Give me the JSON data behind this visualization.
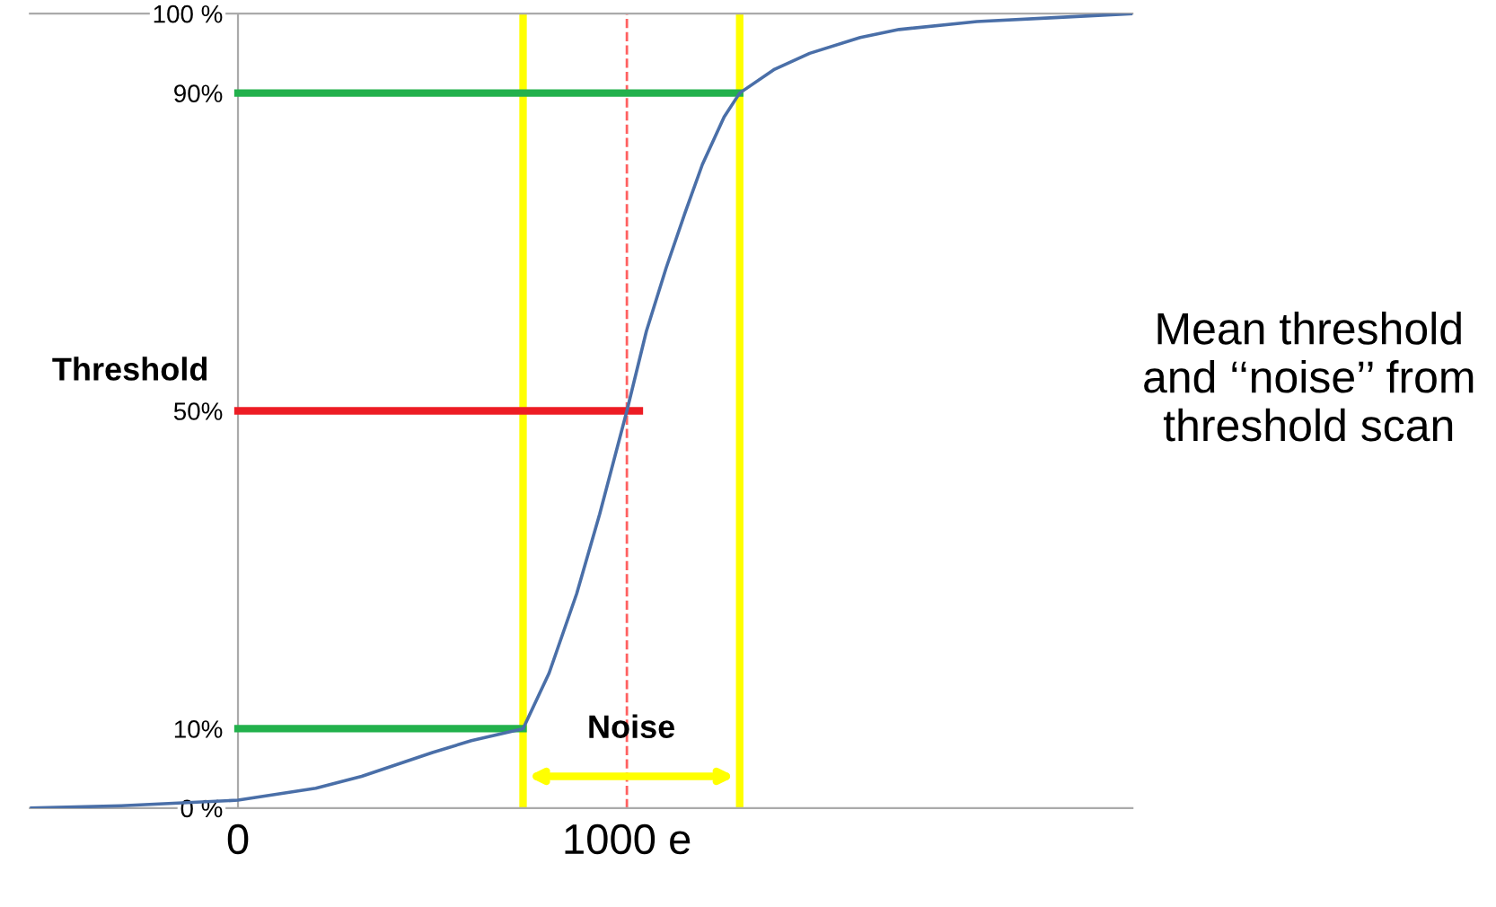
{
  "chart_data": {
    "type": "line",
    "annotations": [
      "Threshold",
      "Noise",
      "Mean threshold\nand ‘‘noise’’ from\nthreshold scan"
    ],
    "series": [
      {
        "color": "#4a6fa8",
        "x": [
          -535,
          -300,
          0,
          200,
          318,
          500,
          600,
          733,
          800,
          871,
          930,
          1000,
          1050,
          1101,
          1150,
          1194,
          1250,
          1290,
          1380,
          1470,
          1600,
          1700,
          1900,
          2100,
          2300
        ],
        "values": [
          0,
          0.3,
          1,
          2.5,
          4,
          7,
          8.5,
          10,
          17,
          27,
          37,
          50,
          60,
          68,
          75,
          81,
          87,
          90,
          93,
          95,
          97,
          98,
          99,
          99.5,
          100
        ]
      },
      {
        "color": "#22b14c",
        "x": [
          0,
          1290
        ],
        "values": [
          90,
          90
        ]
      },
      {
        "color": "#ed1c24",
        "x": [
          0,
          1032
        ],
        "values": [
          50,
          50
        ]
      },
      {
        "color": "#22b14c",
        "x": [
          0,
          733
        ],
        "values": [
          10,
          10
        ]
      }
    ],
    "ref_lines": [
      {
        "axis": "x",
        "value": 733,
        "color": "#ffff00"
      },
      {
        "axis": "x",
        "value": 1290,
        "color": "#ffff00"
      },
      {
        "axis": "x",
        "value": 1000,
        "color": "#ff6060",
        "line_style": "dashed"
      }
    ],
    "xlim": [
      -535,
      2300
    ],
    "ylim": [
      0,
      100
    ],
    "xticks": [
      0,
      {
        "value": 1000,
        "label": "1000 e"
      }
    ],
    "yticks": [
      {
        "value": 0,
        "label": "0 %"
      },
      {
        "value": 10,
        "label": "10%"
      },
      {
        "value": 50,
        "label": "50%"
      },
      {
        "value": 90,
        "label": "90%"
      },
      {
        "value": 100,
        "label": "100 %"
      }
    ],
    "grid": false,
    "legend": false,
    "marker": "none",
    "line_style": "solid"
  }
}
